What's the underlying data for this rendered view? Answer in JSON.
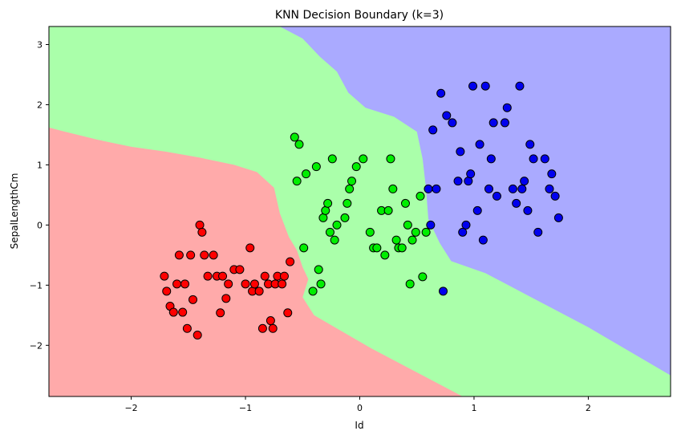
{
  "chart_data": {
    "type": "scatter",
    "title": "KNN Decision Boundary (k=3)",
    "xlabel": "Id",
    "ylabel": "SepalLengthCm",
    "xlim": [
      -2.72,
      2.72
    ],
    "ylim": [
      -2.85,
      3.3
    ],
    "xticks": [
      -2,
      -1,
      0,
      1,
      2
    ],
    "yticks": [
      -2,
      -1,
      0,
      1,
      2,
      3
    ],
    "xtick_labels": [
      "−2",
      "−1",
      "0",
      "1",
      "2"
    ],
    "ytick_labels": [
      "−2",
      "−1",
      "0",
      "1",
      "2",
      "3"
    ],
    "grid": false,
    "legend": "none",
    "region_colors": {
      "red": "#ffaaaa",
      "green": "#aaffaa",
      "blue": "#aaaaff"
    },
    "regions": {
      "red_green_boundary": [
        [
          -2.72,
          1.62
        ],
        [
          -2.6,
          1.56
        ],
        [
          -2.3,
          1.42
        ],
        [
          -2.0,
          1.3
        ],
        [
          -1.7,
          1.22
        ],
        [
          -1.4,
          1.12
        ],
        [
          -1.1,
          1.0
        ],
        [
          -0.9,
          0.88
        ],
        [
          -0.75,
          0.62
        ],
        [
          -0.7,
          0.2
        ],
        [
          -0.62,
          -0.2
        ],
        [
          -0.55,
          -0.42
        ],
        [
          -0.5,
          -0.7
        ],
        [
          -0.45,
          -0.9
        ],
        [
          -0.5,
          -1.2
        ],
        [
          -0.4,
          -1.5
        ],
        [
          -0.2,
          -1.72
        ],
        [
          0.1,
          -2.05
        ],
        [
          0.5,
          -2.45
        ],
        [
          0.9,
          -2.85
        ]
      ],
      "green_blue_boundary": [
        [
          -0.7,
          3.3
        ],
        [
          -0.5,
          3.1
        ],
        [
          -0.35,
          2.8
        ],
        [
          -0.2,
          2.55
        ],
        [
          -0.1,
          2.2
        ],
        [
          0.05,
          1.95
        ],
        [
          0.3,
          1.8
        ],
        [
          0.5,
          1.55
        ],
        [
          0.55,
          1.1
        ],
        [
          0.58,
          0.6
        ],
        [
          0.6,
          0.1
        ],
        [
          0.65,
          -0.1
        ],
        [
          0.7,
          -0.3
        ],
        [
          0.8,
          -0.6
        ],
        [
          1.1,
          -0.8
        ],
        [
          1.5,
          -1.2
        ],
        [
          2.0,
          -1.7
        ],
        [
          2.72,
          -2.5
        ]
      ]
    },
    "series": [
      {
        "color": "#ff0000",
        "points": [
          [
            -1.71,
            -0.85
          ],
          [
            -1.69,
            -1.1
          ],
          [
            -1.66,
            -1.35
          ],
          [
            -1.63,
            -1.45
          ],
          [
            -1.6,
            -0.98
          ],
          [
            -1.58,
            -0.5
          ],
          [
            -1.55,
            -1.45
          ],
          [
            -1.53,
            -0.98
          ],
          [
            -1.51,
            -1.72
          ],
          [
            -1.48,
            -0.5
          ],
          [
            -1.46,
            -1.24
          ],
          [
            -1.42,
            -1.83
          ],
          [
            -1.4,
            0.0
          ],
          [
            -1.38,
            -0.12
          ],
          [
            -1.36,
            -0.5
          ],
          [
            -1.33,
            -0.85
          ],
          [
            -1.28,
            -0.5
          ],
          [
            -1.25,
            -0.85
          ],
          [
            -1.22,
            -1.46
          ],
          [
            -1.2,
            -0.85
          ],
          [
            -1.17,
            -1.22
          ],
          [
            -1.15,
            -0.98
          ],
          [
            -1.1,
            -0.74
          ],
          [
            -1.05,
            -0.74
          ],
          [
            -1.0,
            -0.98
          ],
          [
            -0.96,
            -0.38
          ],
          [
            -0.94,
            -1.1
          ],
          [
            -0.92,
            -0.98
          ],
          [
            -0.88,
            -1.1
          ],
          [
            -0.85,
            -1.72
          ],
          [
            -0.83,
            -0.85
          ],
          [
            -0.8,
            -0.98
          ],
          [
            -0.78,
            -1.59
          ],
          [
            -0.76,
            -1.72
          ],
          [
            -0.74,
            -0.98
          ],
          [
            -0.72,
            -0.85
          ],
          [
            -0.68,
            -0.98
          ],
          [
            -0.66,
            -0.85
          ],
          [
            -0.63,
            -1.46
          ],
          [
            -0.61,
            -0.61
          ]
        ]
      },
      {
        "color": "#00ee00",
        "points": [
          [
            -0.57,
            1.46
          ],
          [
            -0.55,
            0.73
          ],
          [
            -0.53,
            1.34
          ],
          [
            -0.49,
            -0.38
          ],
          [
            -0.47,
            0.85
          ],
          [
            -0.41,
            -1.1
          ],
          [
            -0.38,
            0.97
          ],
          [
            -0.36,
            -0.74
          ],
          [
            -0.34,
            -0.98
          ],
          [
            -0.32,
            0.12
          ],
          [
            -0.3,
            0.24
          ],
          [
            -0.28,
            0.36
          ],
          [
            -0.26,
            -0.12
          ],
          [
            -0.24,
            1.1
          ],
          [
            -0.22,
            -0.25
          ],
          [
            -0.2,
            0.0
          ],
          [
            -0.13,
            0.12
          ],
          [
            -0.11,
            0.36
          ],
          [
            -0.09,
            0.6
          ],
          [
            -0.07,
            0.73
          ],
          [
            -0.03,
            0.97
          ],
          [
            0.03,
            1.1
          ],
          [
            0.09,
            -0.12
          ],
          [
            0.12,
            -0.38
          ],
          [
            0.15,
            -0.38
          ],
          [
            0.19,
            0.24
          ],
          [
            0.22,
            -0.5
          ],
          [
            0.25,
            0.24
          ],
          [
            0.27,
            1.1
          ],
          [
            0.29,
            0.6
          ],
          [
            0.32,
            -0.25
          ],
          [
            0.34,
            -0.38
          ],
          [
            0.37,
            -0.38
          ],
          [
            0.4,
            0.36
          ],
          [
            0.42,
            0.0
          ],
          [
            0.44,
            -0.98
          ],
          [
            0.46,
            -0.25
          ],
          [
            0.49,
            -0.12
          ],
          [
            0.53,
            0.48
          ],
          [
            0.55,
            -0.86
          ],
          [
            0.58,
            -0.12
          ]
        ]
      },
      {
        "color": "#0000ee",
        "points": [
          [
            0.6,
            0.6
          ],
          [
            0.62,
            0.0
          ],
          [
            0.64,
            1.58
          ],
          [
            0.67,
            0.6
          ],
          [
            0.71,
            2.19
          ],
          [
            0.73,
            -1.1
          ],
          [
            0.76,
            1.82
          ],
          [
            0.81,
            1.7
          ],
          [
            0.86,
            0.73
          ],
          [
            0.88,
            1.22
          ],
          [
            0.9,
            -0.12
          ],
          [
            0.93,
            0.0
          ],
          [
            0.95,
            0.73
          ],
          [
            0.97,
            0.85
          ],
          [
            0.99,
            2.31
          ],
          [
            1.03,
            0.24
          ],
          [
            1.05,
            1.34
          ],
          [
            1.08,
            -0.25
          ],
          [
            1.1,
            2.31
          ],
          [
            1.13,
            0.6
          ],
          [
            1.15,
            1.1
          ],
          [
            1.17,
            1.7
          ],
          [
            1.2,
            0.48
          ],
          [
            1.27,
            1.7
          ],
          [
            1.29,
            1.95
          ],
          [
            1.34,
            0.6
          ],
          [
            1.37,
            0.36
          ],
          [
            1.4,
            2.31
          ],
          [
            1.42,
            0.6
          ],
          [
            1.44,
            0.73
          ],
          [
            1.47,
            0.24
          ],
          [
            1.49,
            1.34
          ],
          [
            1.52,
            1.1
          ],
          [
            1.56,
            -0.12
          ],
          [
            1.62,
            1.1
          ],
          [
            1.66,
            0.6
          ],
          [
            1.68,
            0.85
          ],
          [
            1.71,
            0.48
          ],
          [
            1.74,
            0.12
          ]
        ]
      }
    ]
  }
}
